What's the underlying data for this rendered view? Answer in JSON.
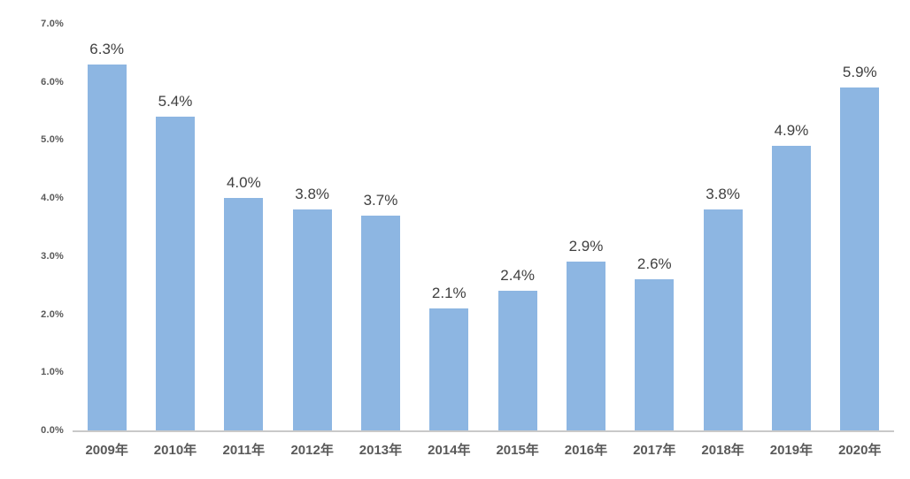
{
  "chart_data": {
    "type": "bar",
    "title": "",
    "xlabel": "",
    "ylabel": "",
    "categories": [
      "2009年",
      "2010年",
      "2011年",
      "2012年",
      "2013年",
      "2014年",
      "2015年",
      "2016年",
      "2017年",
      "2018年",
      "2019年",
      "2020年"
    ],
    "values": [
      6.3,
      5.4,
      4.0,
      3.8,
      3.7,
      2.1,
      2.4,
      2.9,
      2.6,
      3.8,
      4.9,
      5.9
    ],
    "data_labels": [
      "6.3%",
      "5.4%",
      "4.0%",
      "3.8%",
      "3.7%",
      "2.1%",
      "2.4%",
      "2.9%",
      "2.6%",
      "3.8%",
      "4.9%",
      "5.9%"
    ],
    "y_ticks": [
      "0.0%",
      "1.0%",
      "2.0%",
      "3.0%",
      "4.0%",
      "5.0%",
      "6.0%",
      "7.0%"
    ],
    "ylim": [
      0,
      7
    ],
    "grid": false,
    "legend": false,
    "colors": {
      "bar": "#8DB6E2",
      "axis_line": "#C9C9C9",
      "data_label": "#404040",
      "tick_label": "#595959"
    }
  }
}
